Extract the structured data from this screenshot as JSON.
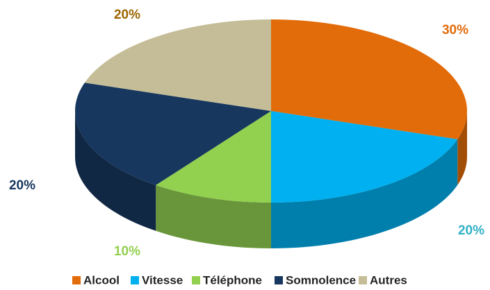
{
  "chart_data": {
    "type": "pie",
    "categories": [
      "Alcool",
      "Vitesse",
      "Téléphone",
      "Somnolence",
      "Autres"
    ],
    "values": [
      30,
      20,
      10,
      20,
      20
    ],
    "value_labels": [
      "30%",
      "20%",
      "10%",
      "20%",
      "20%"
    ],
    "colors": [
      "#e36c0a",
      "#00b0f0",
      "#92d050",
      "#17375e",
      "#c4bd97"
    ],
    "label_colors": [
      "#e36c0a",
      "#31b0c6",
      "#92d050",
      "#17375e",
      "#9c6500"
    ],
    "legend": "bottom"
  }
}
